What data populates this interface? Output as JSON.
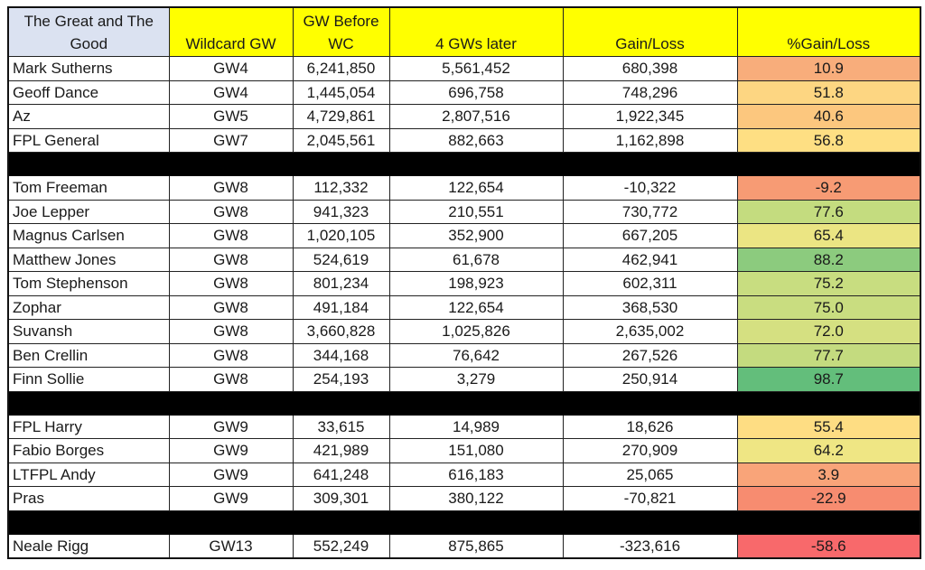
{
  "table": {
    "headers": [
      "The Great and The Good",
      "Wildcard GW",
      "GW Before WC",
      "4 GWs later",
      "Gain/Loss",
      "%Gain/Loss"
    ],
    "colors": {
      "header_title_bg": "#dbe2f1",
      "header_bg": "#ffff00",
      "separator_bg": "#000000"
    },
    "groups": [
      {
        "rows": [
          {
            "name": "Mark Sutherns",
            "wc": "GW4",
            "before": "6,241,850",
            "later": "5,561,452",
            "gain": "680,398",
            "pct": "10.9",
            "color": "#f8ad7b"
          },
          {
            "name": "Geoff Dance",
            "wc": "GW4",
            "before": "1,445,054",
            "later": "696,758",
            "gain": "748,296",
            "pct": "51.8",
            "color": "#fdd682"
          },
          {
            "name": "Az",
            "wc": "GW5",
            "before": "4,729,861",
            "later": "2,807,516",
            "gain": "1,922,345",
            "pct": "40.6",
            "color": "#fcc77e"
          },
          {
            "name": "FPL General",
            "wc": "GW7",
            "before": "2,045,561",
            "later": "882,663",
            "gain": "1,162,898",
            "pct": "56.8",
            "color": "#fedf83"
          }
        ]
      },
      {
        "rows": [
          {
            "name": "Tom Freeman",
            "wc": "GW8",
            "before": "112,332",
            "later": "122,654",
            "gain": "-10,322",
            "pct": "-9.2",
            "color": "#f79b74"
          },
          {
            "name": "Joe Lepper",
            "wc": "GW8",
            "before": "941,323",
            "later": "210,551",
            "gain": "730,772",
            "pct": "77.6",
            "color": "#c4dc7f"
          },
          {
            "name": "Magnus Carlsen",
            "wc": "GW8",
            "before": "1,020,105",
            "later": "352,900",
            "gain": "667,205",
            "pct": "65.4",
            "color": "#ebe583"
          },
          {
            "name": "Matthew Jones",
            "wc": "GW8",
            "before": "524,619",
            "later": "61,678",
            "gain": "462,941",
            "pct": "88.2",
            "color": "#8ccb7e"
          },
          {
            "name": "Tom Stephenson",
            "wc": "GW8",
            "before": "801,234",
            "later": "198,923",
            "gain": "602,311",
            "pct": "75.2",
            "color": "#c8dd80"
          },
          {
            "name": "Zophar",
            "wc": "GW8",
            "before": "491,184",
            "later": "122,654",
            "gain": "368,530",
            "pct": "75.0",
            "color": "#c9dd80"
          },
          {
            "name": "Suvansh",
            "wc": "GW8",
            "before": "3,660,828",
            "later": "1,025,826",
            "gain": "2,635,002",
            "pct": "72.0",
            "color": "#d5e081"
          },
          {
            "name": "Ben Crellin",
            "wc": "GW8",
            "before": "344,168",
            "later": "76,642",
            "gain": "267,526",
            "pct": "77.7",
            "color": "#c4db7f"
          },
          {
            "name": "Finn Sollie",
            "wc": "GW8",
            "before": "254,193",
            "later": "3,279",
            "gain": "250,914",
            "pct": "98.7",
            "color": "#63be7b"
          }
        ]
      },
      {
        "rows": [
          {
            "name": "FPL Harry",
            "wc": "GW9",
            "before": "33,615",
            "later": "14,989",
            "gain": "18,626",
            "pct": "55.4",
            "color": "#fedd83"
          },
          {
            "name": "Fabio Borges",
            "wc": "GW9",
            "before": "421,989",
            "later": "151,080",
            "gain": "270,909",
            "pct": "64.2",
            "color": "#efe684"
          },
          {
            "name": "LTFPL Andy",
            "wc": "GW9",
            "before": "641,248",
            "later": "616,183",
            "gain": "25,065",
            "pct": "3.9",
            "color": "#f9a479"
          },
          {
            "name": "Pras",
            "wc": "GW9",
            "before": "309,301",
            "later": "380,122",
            "gain": "-70,821",
            "pct": "-22.9",
            "color": "#f78c70"
          }
        ]
      },
      {
        "rows": [
          {
            "name": "Neale Rigg",
            "wc": "GW13",
            "before": "552,249",
            "later": "875,865",
            "gain": "-323,616",
            "pct": "-58.6",
            "color": "#f8696b"
          }
        ]
      }
    ]
  }
}
